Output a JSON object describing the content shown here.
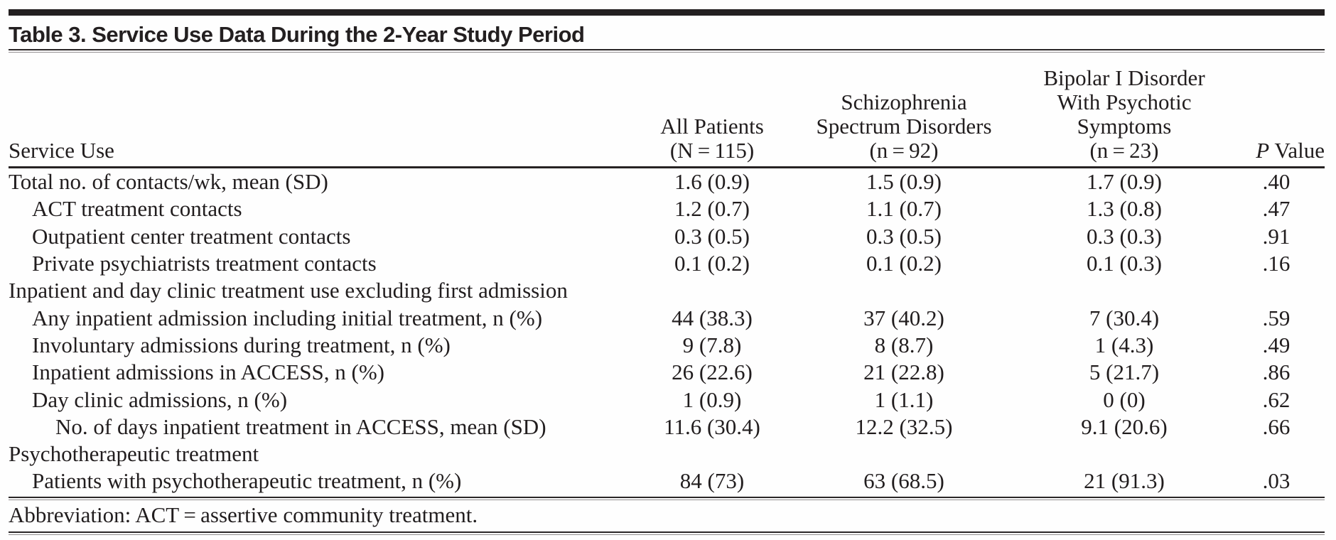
{
  "table": {
    "title": "Table 3. Service Use Data During the 2-Year Study Period",
    "header": {
      "service_use": "Service Use",
      "all_patients": [
        "All Patients",
        "(N = 115)"
      ],
      "schizophrenia": [
        "Schizophrenia",
        "Spectrum Disorders",
        "(n = 92)"
      ],
      "bipolar": [
        "Bipolar I Disorder",
        "With Psychotic",
        "Symptoms",
        "(n = 23)"
      ],
      "p_value": {
        "italic": "P",
        "rest": "Value"
      }
    },
    "rows": [
      {
        "label": "Total no. of contacts/wk, mean (SD)",
        "indent": 0,
        "values": [
          "1.6 (0.9)",
          "1.5 (0.9)",
          "1.7 (0.9)",
          ".40"
        ]
      },
      {
        "label": "ACT treatment contacts",
        "indent": 1,
        "values": [
          "1.2 (0.7)",
          "1.1 (0.7)",
          "1.3 (0.8)",
          ".47"
        ]
      },
      {
        "label": "Outpatient center treatment contacts",
        "indent": 1,
        "values": [
          "0.3 (0.5)",
          "0.3 (0.5)",
          "0.3 (0.3)",
          ".91"
        ]
      },
      {
        "label": "Private psychiatrists treatment contacts",
        "indent": 1,
        "values": [
          "0.1 (0.2)",
          "0.1 (0.2)",
          "0.1 (0.3)",
          ".16"
        ]
      },
      {
        "label": "Inpatient and day clinic treatment use excluding first admission",
        "indent": 0,
        "values": [
          "",
          "",
          "",
          ""
        ]
      },
      {
        "label": "Any inpatient admission including initial treatment, n (%)",
        "indent": 1,
        "values": [
          "44 (38.3)",
          "37 (40.2)",
          "7 (30.4)",
          ".59"
        ]
      },
      {
        "label": "Involuntary admissions during treatment, n (%)",
        "indent": 1,
        "values": [
          "9 (7.8)",
          "8 (8.7)",
          "1 (4.3)",
          ".49"
        ]
      },
      {
        "label": "Inpatient admissions in ACCESS, n (%)",
        "indent": 1,
        "values": [
          "26 (22.6)",
          "21 (22.8)",
          "5 (21.7)",
          ".86"
        ]
      },
      {
        "label": "Day clinic admissions, n (%)",
        "indent": 1,
        "values": [
          "1 (0.9)",
          "1 (1.1)",
          "0 (0)",
          ".62"
        ]
      },
      {
        "label": "No. of days inpatient treatment in ACCESS, mean (SD)",
        "indent": 2,
        "values": [
          "11.6 (30.4)",
          "12.2 (32.5)",
          "9.1 (20.6)",
          ".66"
        ]
      },
      {
        "label": "Psychotherapeutic treatment",
        "indent": 0,
        "values": [
          "",
          "",
          "",
          ""
        ]
      },
      {
        "label": "Patients with psychotherapeutic treatment, n (%)",
        "indent": 1,
        "values": [
          "84 (73)",
          "63 (68.5)",
          "21 (91.3)",
          ".03"
        ]
      }
    ],
    "footnote": "Abbreviation: ACT = assertive community treatment.",
    "colors": {
      "rule": "#231f20",
      "text": "#211d1e",
      "background": "#fefefe"
    }
  }
}
